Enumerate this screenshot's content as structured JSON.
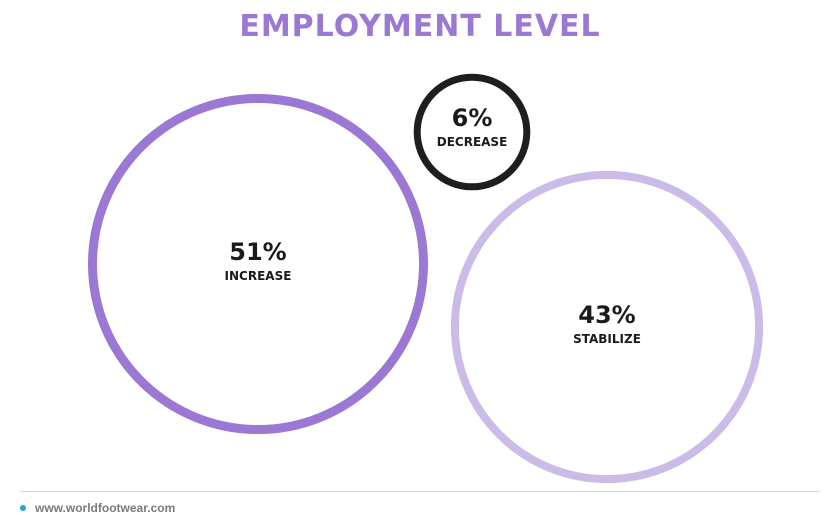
{
  "title": "EMPLOYMENT LEVEL",
  "colors": {
    "title": "#9b78d4",
    "increase": "#9b78d4",
    "stabilize": "#cbbbe9",
    "decrease": "#1e1e1e",
    "footer_dot": "#1ba3dc"
  },
  "chart_data": {
    "type": "bubble",
    "title": "EMPLOYMENT LEVEL",
    "series": [
      {
        "label": "INCREASE",
        "value": 51,
        "display": "51%",
        "color": "#9b78d4"
      },
      {
        "label": "DECREASE",
        "value": 6,
        "display": "6%",
        "color": "#1e1e1e"
      },
      {
        "label": "STABILIZE",
        "value": 43,
        "display": "43%",
        "color": "#cbbbe9"
      }
    ]
  },
  "footer": {
    "url": "www.worldfootwear.com"
  }
}
